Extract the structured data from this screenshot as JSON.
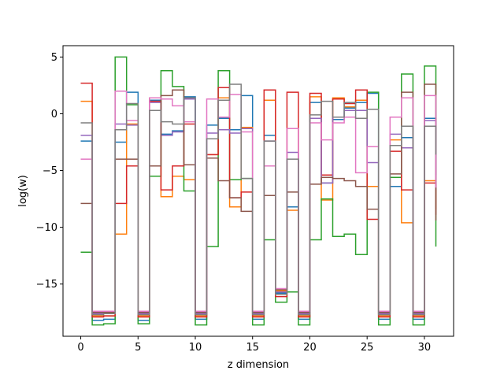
{
  "chart_data": {
    "type": "line",
    "step": "post",
    "title": "",
    "xlabel": "z dimension",
    "ylabel": "log(w)",
    "xlim": [
      -1.55,
      32.55
    ],
    "ylim": [
      -19.6,
      6.0
    ],
    "xticks": [
      0,
      5,
      10,
      15,
      20,
      25,
      30
    ],
    "yticks": [
      5,
      0,
      -5,
      -10,
      -15
    ],
    "grid": false,
    "legend": "none",
    "x": [
      0,
      1,
      2,
      3,
      4,
      5,
      6,
      7,
      8,
      9,
      10,
      11,
      12,
      13,
      14,
      15,
      16,
      17,
      18,
      19,
      20,
      21,
      22,
      23,
      24,
      25,
      26,
      27,
      28,
      29,
      30,
      31
    ],
    "series": [
      {
        "color": "#1f77b4",
        "values": [
          -2.4,
          -18.2,
          -18.1,
          -2.5,
          1.9,
          -18.2,
          1.2,
          -1.8,
          -1.5,
          1.5,
          -18.1,
          -1.0,
          -0.4,
          -1.4,
          1.6,
          -18.1,
          -1.9,
          -15.8,
          -8.2,
          -18.1,
          1.0,
          -6.1,
          -0.5,
          0.5,
          1.0,
          1.8,
          -18.1,
          -6.4,
          -2.1,
          -18.1,
          -0.4,
          -5.4
        ]
      },
      {
        "color": "#ff7f0e",
        "values": [
          1.1,
          -17.8,
          -17.8,
          -10.6,
          -0.9,
          -17.8,
          1.4,
          -7.3,
          -5.5,
          -5.8,
          -17.8,
          -3.6,
          1.4,
          -8.2,
          -1.2,
          -17.8,
          1.2,
          -15.6,
          -8.5,
          -17.8,
          1.5,
          -7.6,
          1.4,
          0.6,
          1.2,
          -6.4,
          -17.8,
          -2.3,
          -9.6,
          -17.8,
          -5.9,
          -8.4
        ]
      },
      {
        "color": "#2ca02c",
        "values": [
          -12.2,
          -18.6,
          -18.5,
          5.0,
          0.8,
          -18.5,
          -5.5,
          3.8,
          2.4,
          -6.8,
          -18.6,
          -11.7,
          3.8,
          -5.8,
          -5.7,
          -18.6,
          -11.1,
          -16.6,
          -15.7,
          -18.6,
          -11.1,
          -7.5,
          -10.8,
          -10.6,
          -12.4,
          1.9,
          -18.6,
          -5.6,
          3.5,
          -18.6,
          4.2,
          -11.7
        ]
      },
      {
        "color": "#d62728",
        "values": [
          2.7,
          -17.9,
          -17.8,
          -7.9,
          -4.6,
          -17.9,
          1.1,
          -6.7,
          -4.6,
          -0.9,
          -17.9,
          -3.6,
          2.3,
          -7.4,
          -6.9,
          -17.9,
          2.1,
          -16.1,
          1.9,
          -17.9,
          1.8,
          -5.4,
          1.3,
          0.9,
          2.1,
          -9.3,
          -17.9,
          -3.3,
          -6.7,
          -17.9,
          -6.1,
          -8.9
        ]
      },
      {
        "color": "#9467bd",
        "values": [
          -1.9,
          -17.6,
          -17.6,
          -0.9,
          -1.0,
          -17.6,
          1.0,
          -1.9,
          -1.6,
          1.3,
          -17.6,
          -1.7,
          -1.4,
          -1.7,
          -1.3,
          -17.6,
          -2.4,
          -15.7,
          -3.4,
          -17.6,
          -0.4,
          -6.1,
          -0.3,
          0.3,
          0.3,
          -4.3,
          -17.6,
          -1.8,
          -3.0,
          -17.6,
          -0.6,
          -6.7
        ]
      },
      {
        "color": "#8c564b",
        "values": [
          -7.9,
          -17.5,
          -17.5,
          -4.0,
          -4.0,
          -17.5,
          -4.6,
          1.6,
          2.1,
          -4.5,
          -17.5,
          -3.9,
          -5.9,
          -7.4,
          -8.6,
          -17.5,
          -7.2,
          -15.5,
          -6.9,
          -17.5,
          -6.2,
          -5.6,
          -5.7,
          -5.9,
          -6.4,
          -8.4,
          -17.5,
          -5.3,
          1.9,
          -17.5,
          2.6,
          -9.4
        ]
      },
      {
        "color": "#e377c2",
        "values": [
          -4.0,
          -17.4,
          -17.4,
          2.0,
          -0.6,
          -17.4,
          1.4,
          1.3,
          0.7,
          -0.7,
          -17.4,
          1.3,
          -0.3,
          1.7,
          -1.6,
          -17.4,
          -4.6,
          -15.4,
          -1.3,
          -17.4,
          -0.8,
          -2.3,
          -0.8,
          -0.3,
          -5.2,
          -2.9,
          -17.4,
          -0.3,
          1.4,
          -17.4,
          1.6,
          -6.5
        ]
      },
      {
        "color": "#7f7f7f",
        "values": [
          -0.8,
          -17.7,
          -17.6,
          -1.4,
          0.9,
          -17.7,
          0.3,
          -0.7,
          -0.9,
          1.4,
          -17.7,
          -2.2,
          1.2,
          2.6,
          -5.7,
          -17.7,
          -2.4,
          -15.9,
          -4.0,
          -17.7,
          -0.1,
          1.1,
          -0.3,
          1.0,
          -0.4,
          0.4,
          -17.7,
          -2.8,
          -1.1,
          -17.7,
          -1.1,
          -3.6
        ]
      }
    ]
  }
}
